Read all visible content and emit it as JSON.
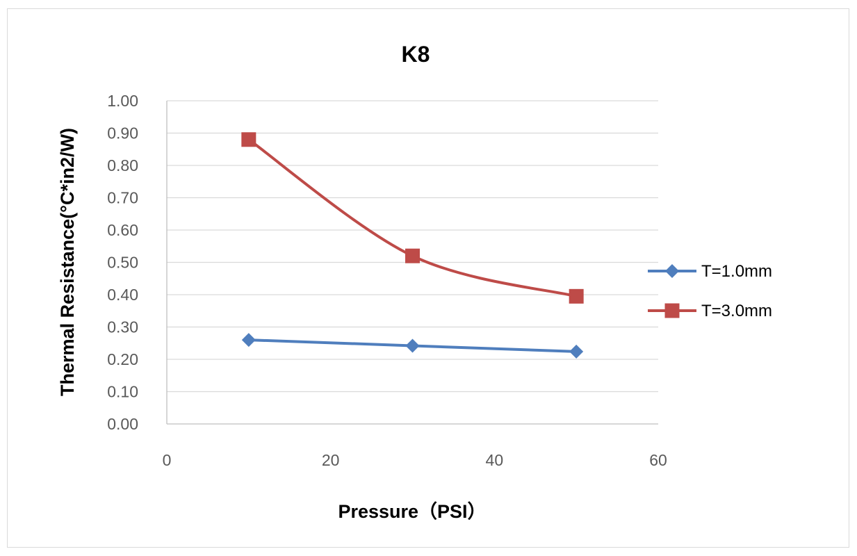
{
  "chart_data": {
    "type": "line",
    "title": "K8",
    "xlabel": "Pressure（PSI）",
    "ylabel": "Thermal Resistance(°C*in2/W)",
    "xlim": [
      0,
      60
    ],
    "ylim": [
      0,
      1.0
    ],
    "x_ticks": [
      0,
      20,
      40,
      60
    ],
    "x_tick_labels": [
      "0",
      "20",
      "40",
      "60"
    ],
    "y_ticks": [
      0,
      0.1,
      0.2,
      0.3,
      0.4,
      0.5,
      0.6,
      0.7,
      0.8,
      0.9,
      1.0
    ],
    "y_tick_labels": [
      "0.00",
      "0.10",
      "0.20",
      "0.30",
      "0.40",
      "0.50",
      "0.60",
      "0.70",
      "0.80",
      "0.90",
      "1.00"
    ],
    "grid": "horizontal",
    "legend_position": "right",
    "series": [
      {
        "name": "T=1.0mm",
        "color": "#4f7ebd",
        "marker": "diamond",
        "smooth": false,
        "x": [
          10,
          30,
          50
        ],
        "values": [
          0.26,
          0.242,
          0.224
        ]
      },
      {
        "name": "T=3.0mm",
        "color": "#be4b48",
        "marker": "square",
        "smooth": true,
        "x": [
          10,
          30,
          50
        ],
        "values": [
          0.88,
          0.52,
          0.395
        ]
      }
    ]
  }
}
